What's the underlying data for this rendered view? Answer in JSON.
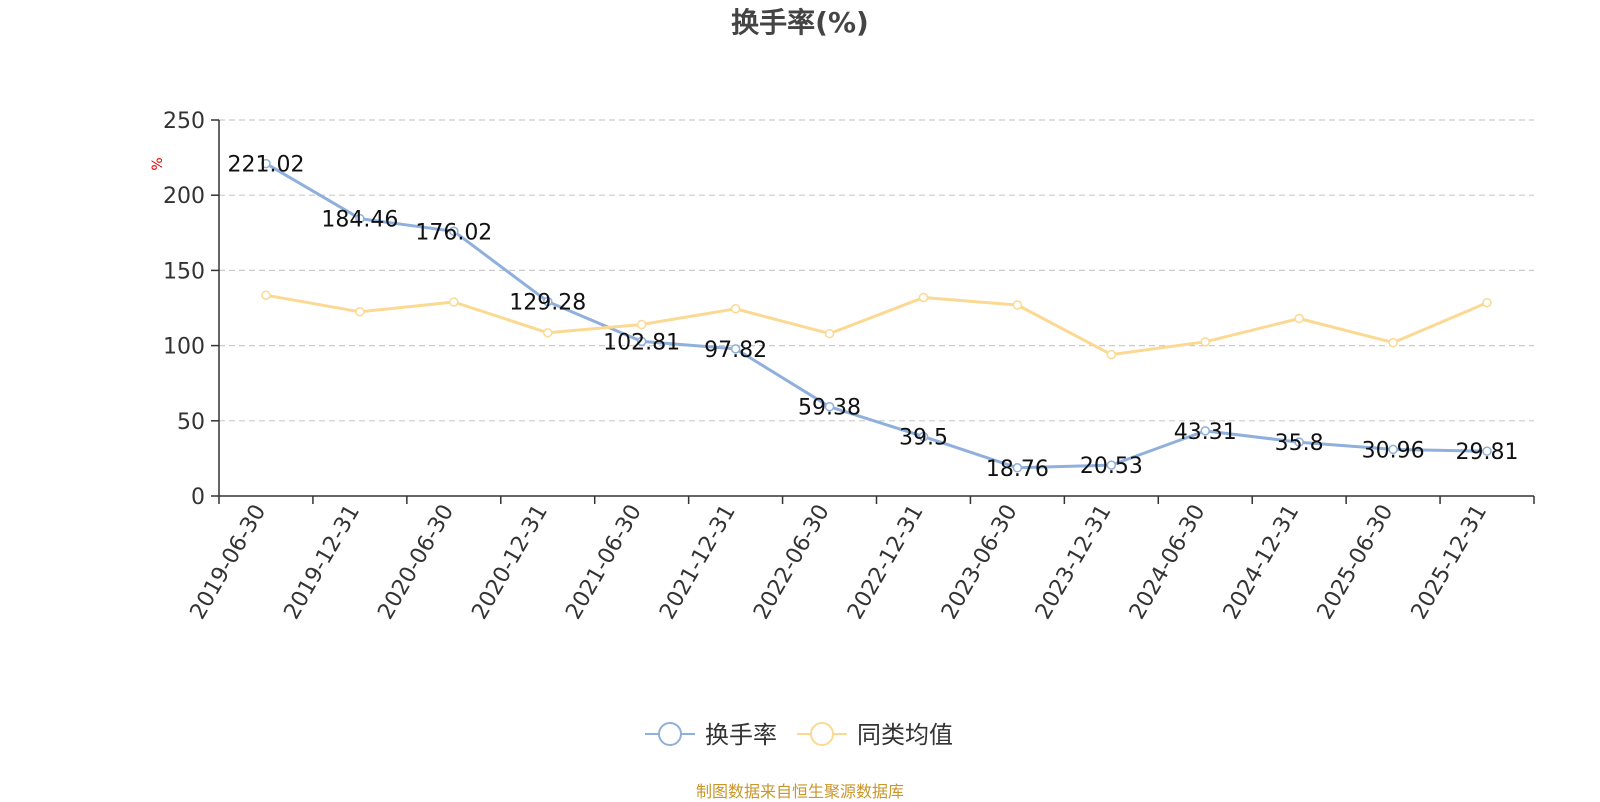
{
  "chart_data": {
    "type": "line",
    "title": "换手率(%)",
    "ylabel": "%",
    "xlabel": "",
    "ylim": [
      0,
      250
    ],
    "yticks": [
      0,
      50,
      100,
      150,
      200,
      250
    ],
    "grid": true,
    "legend_position": "bottom-center",
    "categories": [
      "2019-06-30",
      "2019-12-31",
      "2020-06-30",
      "2020-12-31",
      "2021-06-30",
      "2021-12-31",
      "2022-06-30",
      "2022-12-31",
      "2023-06-30",
      "2023-12-31",
      "2024-06-30",
      "2024-12-31",
      "2025-06-30",
      "2025-12-31"
    ],
    "series": [
      {
        "name": "换手率",
        "color": "#8fb0dc",
        "values": [
          221.02,
          184.46,
          176.02,
          129.28,
          102.81,
          97.82,
          59.38,
          39.5,
          18.76,
          20.53,
          43.31,
          35.8,
          30.96,
          29.81
        ],
        "labels": [
          "221.02",
          "184.46",
          "176.02",
          "129.28",
          "102.81",
          "97.82",
          "59.38",
          "39.5",
          "18.76",
          "20.53",
          "43.31",
          "35.8",
          "30.96",
          "29.81"
        ]
      },
      {
        "name": "同类均值",
        "color": "#fbd992",
        "values": [
          133.5,
          122.5,
          129,
          108.5,
          114,
          124.5,
          108,
          132,
          127,
          94,
          102.5,
          118,
          102,
          128.5
        ]
      }
    ]
  },
  "footer": {
    "source": "制图数据来自恒生聚源数据库"
  }
}
